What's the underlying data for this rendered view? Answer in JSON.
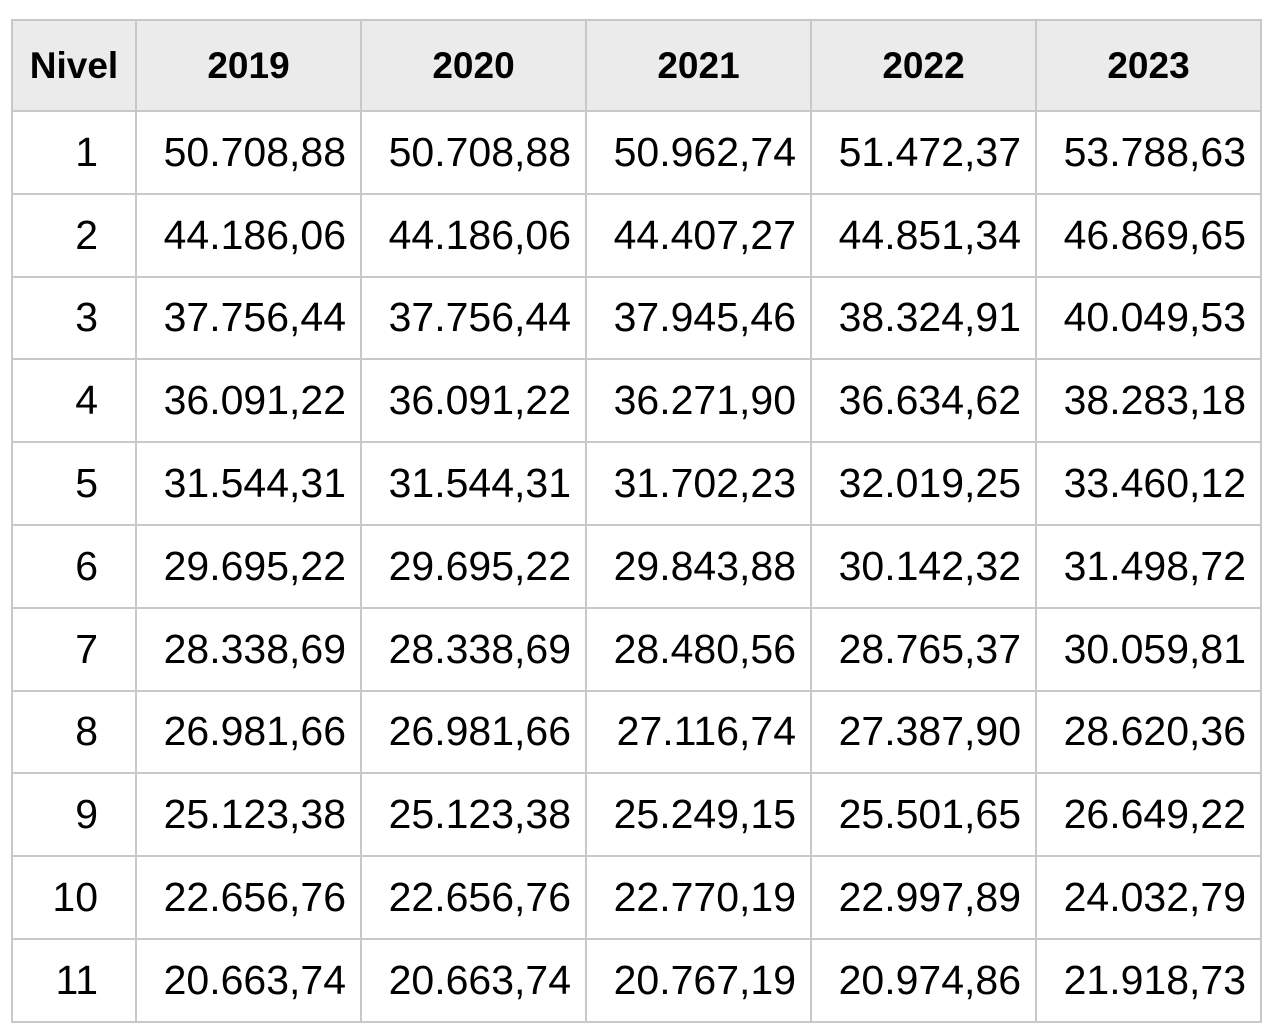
{
  "table": {
    "header": [
      "Nivel",
      "2019",
      "2020",
      "2021",
      "2022",
      "2023"
    ],
    "rows": [
      [
        "1",
        "50.708,88",
        "50.708,88",
        "50.962,74",
        "51.472,37",
        "53.788,63"
      ],
      [
        "2",
        "44.186,06",
        "44.186,06",
        "44.407,27",
        "44.851,34",
        "46.869,65"
      ],
      [
        "3",
        "37.756,44",
        "37.756,44",
        "37.945,46",
        "38.324,91",
        "40.049,53"
      ],
      [
        "4",
        "36.091,22",
        "36.091,22",
        "36.271,90",
        "36.634,62",
        "38.283,18"
      ],
      [
        "5",
        "31.544,31",
        "31.544,31",
        "31.702,23",
        "32.019,25",
        "33.460,12"
      ],
      [
        "6",
        "29.695,22",
        "29.695,22",
        "29.843,88",
        "30.142,32",
        "31.498,72"
      ],
      [
        "7",
        "28.338,69",
        "28.338,69",
        "28.480,56",
        "28.765,37",
        "30.059,81"
      ],
      [
        "8",
        "26.981,66",
        "26.981,66",
        "27.116,74",
        "27.387,90",
        "28.620,36"
      ],
      [
        "9",
        "25.123,38",
        "25.123,38",
        "25.249,15",
        "25.501,65",
        "26.649,22"
      ],
      [
        "10",
        "22.656,76",
        "22.656,76",
        "22.770,19",
        "22.997,89",
        "24.032,79"
      ],
      [
        "11",
        "20.663,74",
        "20.663,74",
        "20.767,19",
        "20.974,86",
        "21.918,73"
      ]
    ]
  }
}
